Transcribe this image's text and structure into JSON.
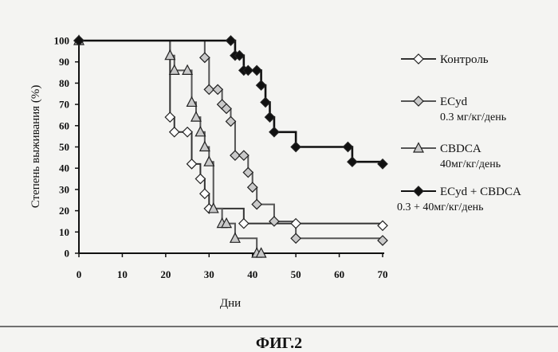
{
  "figure_caption": "ФИГ.2",
  "chart_data": {
    "type": "line",
    "xlabel": "Дни",
    "ylabel": "Степень выживания (%)",
    "xlim": [
      0,
      70
    ],
    "ylim": [
      0,
      100
    ],
    "xticks": [
      0,
      10,
      20,
      30,
      40,
      50,
      60,
      70
    ],
    "yticks": [
      0,
      10,
      20,
      30,
      40,
      50,
      60,
      70,
      80,
      90,
      100
    ],
    "grid": false,
    "legend_position": "right",
    "series": [
      {
        "name": "Контроль",
        "sub": "",
        "marker": "diamond",
        "fill": "#ffffff",
        "line": "#333333",
        "x": [
          0,
          21,
          22,
          25,
          26,
          28,
          29,
          30,
          38,
          50,
          70
        ],
        "y": [
          100,
          64,
          57,
          57,
          42,
          35,
          28,
          21,
          14,
          14,
          13
        ]
      },
      {
        "name": "ECyd",
        "sub": "0.3 мг/кг/день",
        "marker": "diamond",
        "fill": "#c9c9c9",
        "line": "#555555",
        "x": [
          0,
          29,
          30,
          32,
          33,
          34,
          35,
          36,
          38,
          39,
          40,
          41,
          45,
          50,
          70
        ],
        "y": [
          100,
          92,
          77,
          77,
          70,
          68,
          62,
          46,
          46,
          38,
          31,
          23,
          15,
          7,
          6
        ]
      },
      {
        "name": "CBDCA",
        "sub": "40мг/кг/день",
        "marker": "triangle",
        "fill": "#c9c9c9",
        "line": "#555555",
        "x": [
          0,
          21,
          22,
          25,
          26,
          27,
          28,
          29,
          30,
          31,
          33,
          34,
          36,
          41,
          42
        ],
        "y": [
          100,
          93,
          86,
          86,
          71,
          64,
          57,
          50,
          43,
          21,
          14,
          14,
          7,
          0,
          0
        ]
      },
      {
        "name": "ECyd + CBDCA",
        "sub": "0.3 + 40мг/кг/день",
        "marker": "diamond",
        "fill": "#111111",
        "line": "#111111",
        "x": [
          0,
          35,
          36,
          37,
          38,
          39,
          41,
          42,
          43,
          44,
          45,
          50,
          62,
          63,
          70
        ],
        "y": [
          100,
          100,
          93,
          93,
          86,
          86,
          86,
          79,
          71,
          64,
          57,
          50,
          50,
          43,
          42
        ]
      }
    ]
  }
}
